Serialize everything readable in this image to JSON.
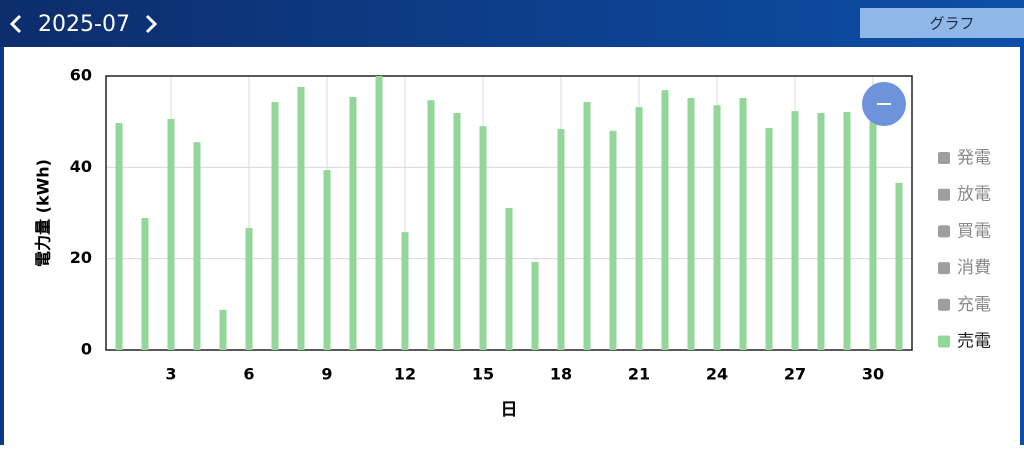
{
  "header": {
    "month": "2025-07",
    "view_button": "グラフ"
  },
  "chart_data": {
    "type": "bar",
    "y_label": "電力量 (kWh)",
    "x_label": "日",
    "categories": [
      null,
      null,
      "3",
      null,
      null,
      "6",
      null,
      null,
      "9",
      null,
      null,
      "12",
      null,
      null,
      "15",
      null,
      null,
      "18",
      null,
      null,
      "21",
      null,
      null,
      "24",
      null,
      null,
      "27",
      null,
      null,
      "30",
      null
    ],
    "series": [
      {
        "name": "発電",
        "color": "#9e9e9e",
        "hidden": true
      },
      {
        "name": "放電",
        "color": "#9e9e9e",
        "hidden": true
      },
      {
        "name": "買電",
        "color": "#9e9e9e",
        "hidden": true
      },
      {
        "name": "消費",
        "color": "#9e9e9e",
        "hidden": true
      },
      {
        "name": "充電",
        "color": "#9e9e9e",
        "hidden": true
      },
      {
        "name": "売電",
        "color": "#93d69a",
        "values": [
          49.7,
          28.9,
          50.6,
          45.5,
          8.8,
          26.7,
          54.3,
          57.6,
          39.4,
          55.4,
          60,
          25.8,
          54.7,
          51.9,
          49,
          31.1,
          19.3,
          48.4,
          54.3,
          48,
          53.2,
          56.9,
          55.2,
          53.6,
          55.2,
          48.6,
          52.3,
          51.9,
          52.1,
          50,
          36.6
        ]
      }
    ],
    "ylim": [
      0,
      60
    ],
    "yticks": [
      0,
      20,
      40,
      60
    ],
    "grid": true
  }
}
